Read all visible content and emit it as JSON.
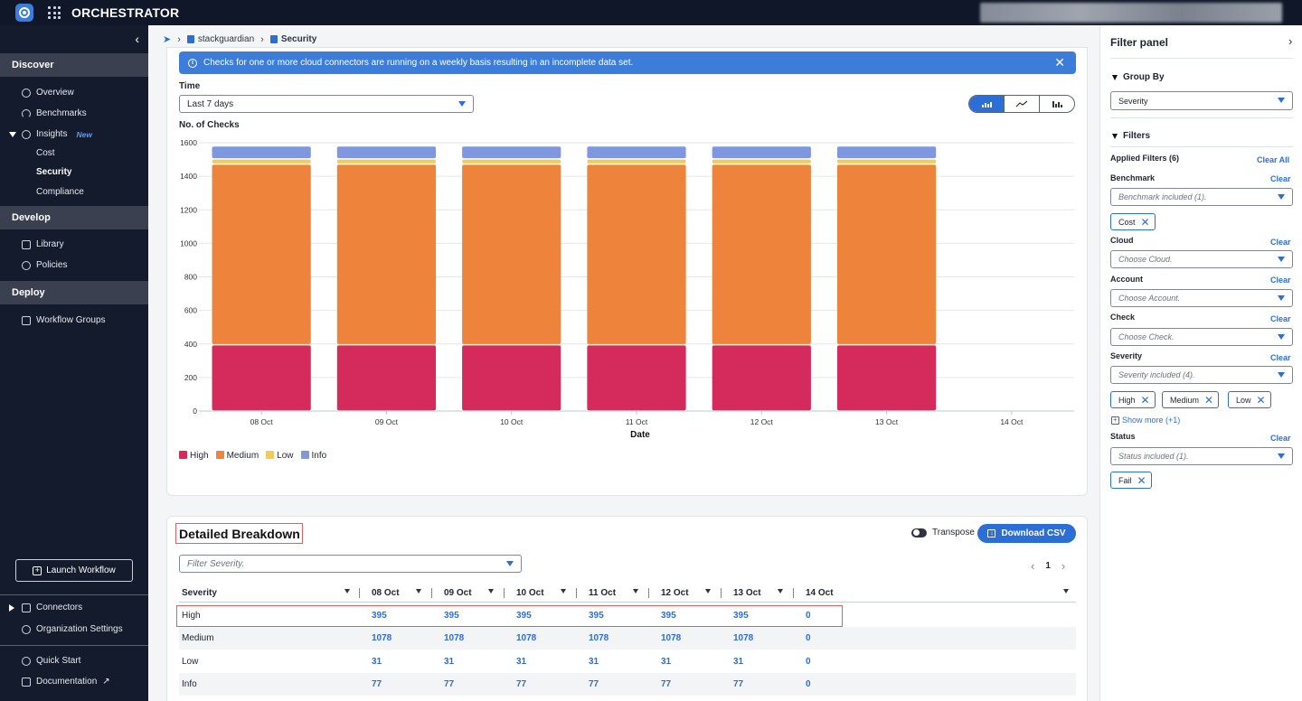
{
  "app": {
    "title": "ORCHESTRATOR"
  },
  "sidebar": {
    "sections": {
      "discover": "Discover",
      "develop": "Develop",
      "deploy": "Deploy"
    },
    "items": {
      "overview": "Overview",
      "benchmarks": "Benchmarks",
      "insights": "Insights",
      "insights_badge": "New",
      "cost": "Cost",
      "security": "Security",
      "compliance": "Compliance",
      "library": "Library",
      "policies": "Policies",
      "workflow_groups": "Workflow Groups"
    },
    "launch_workflow": "Launch Workflow",
    "connectors": "Connectors",
    "org_settings": "Organization Settings",
    "quick_start": "Quick Start",
    "documentation": "Documentation"
  },
  "breadcrumb": {
    "org": "stackguardian",
    "current": "Security"
  },
  "banner": {
    "message": "Checks for one or more cloud connectors are running on a weekly basis resulting in an incomplete data set."
  },
  "time_filter": {
    "label": "Time",
    "value": "Last 7 days"
  },
  "chart_data": {
    "type": "bar",
    "stacked": true,
    "ylabel": "No. of Checks",
    "xlabel": "Date",
    "ylim": [
      0,
      1600
    ],
    "yticks": [
      0,
      200,
      400,
      600,
      800,
      1000,
      1200,
      1400,
      1600
    ],
    "categories": [
      "08 Oct",
      "09 Oct",
      "10 Oct",
      "11 Oct",
      "12 Oct",
      "13 Oct",
      "14 Oct"
    ],
    "series": [
      {
        "name": "High",
        "color": "#d42b5c",
        "values": [
          395,
          395,
          395,
          395,
          395,
          395,
          0
        ]
      },
      {
        "name": "Medium",
        "color": "#ee833b",
        "values": [
          1078,
          1078,
          1078,
          1078,
          1078,
          1078,
          0
        ]
      },
      {
        "name": "Low",
        "color": "#f2cc5a",
        "values": [
          31,
          31,
          31,
          31,
          31,
          31,
          0
        ]
      },
      {
        "name": "Info",
        "color": "#7f96e0",
        "values": [
          77,
          77,
          77,
          77,
          77,
          77,
          0
        ]
      }
    ],
    "grid": true,
    "legend": "bottom-left"
  },
  "breakdown": {
    "title": "Detailed Breakdown",
    "transpose_label": "Transpose",
    "download_label": "Download CSV",
    "filter_placeholder": "Filter Severity.",
    "page": "1",
    "columns": [
      "Severity",
      "08 Oct",
      "09 Oct",
      "10 Oct",
      "11 Oct",
      "12 Oct",
      "13 Oct",
      "14 Oct"
    ],
    "rows": [
      [
        "High",
        "395",
        "395",
        "395",
        "395",
        "395",
        "395",
        "0"
      ],
      [
        "Medium",
        "1078",
        "1078",
        "1078",
        "1078",
        "1078",
        "1078",
        "0"
      ],
      [
        "Low",
        "31",
        "31",
        "31",
        "31",
        "31",
        "31",
        "0"
      ],
      [
        "Info",
        "77",
        "77",
        "77",
        "77",
        "77",
        "77",
        "0"
      ]
    ]
  },
  "filter_panel": {
    "title": "Filter panel",
    "group_by": {
      "label": "Group By",
      "value": "Severity"
    },
    "filters_label": "Filters",
    "applied": "Applied Filters (6)",
    "clear_all": "Clear All",
    "clear": "Clear",
    "benchmark": {
      "label": "Benchmark",
      "placeholder": "Benchmark included (1).",
      "chips": [
        "Cost"
      ]
    },
    "cloud": {
      "label": "Cloud",
      "placeholder": "Choose Cloud."
    },
    "account": {
      "label": "Account",
      "placeholder": "Choose Account."
    },
    "check": {
      "label": "Check",
      "placeholder": "Choose Check."
    },
    "severity": {
      "label": "Severity",
      "placeholder": "Severity included (4).",
      "chips": [
        "High",
        "Medium",
        "Low"
      ],
      "show_more": "Show more (+1)"
    },
    "status": {
      "label": "Status",
      "placeholder": "Status included (1).",
      "chips": [
        "Fail"
      ]
    }
  }
}
